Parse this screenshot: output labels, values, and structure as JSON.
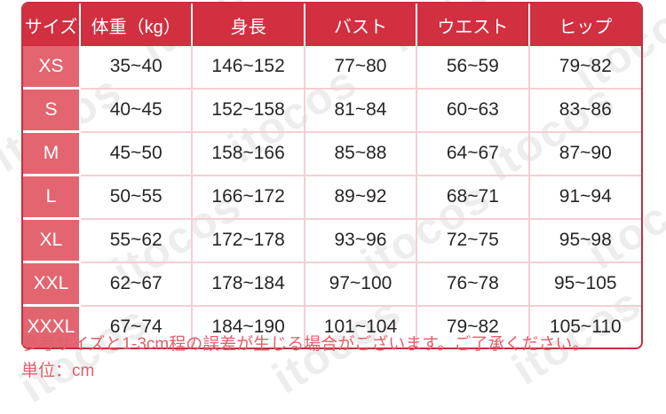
{
  "watermark": {
    "text": "itocos"
  },
  "colors": {
    "header_bg": "#d22f40",
    "size_col_bg": "#e2656f",
    "table_border": "#c43041",
    "cell_divider": "#f6ced2",
    "note_text": "#e05f6c"
  },
  "chart_data": {
    "type": "table",
    "columns": [
      "サイズ",
      "体重（kg）",
      "身長",
      "バスト",
      "ウエスト",
      "ヒップ"
    ],
    "rows": [
      [
        "XS",
        "35~40",
        "146~152",
        "77~80",
        "56~59",
        "79~82"
      ],
      [
        "S",
        "40~45",
        "152~158",
        "81~84",
        "60~63",
        "83~86"
      ],
      [
        "M",
        "45~50",
        "158~166",
        "85~88",
        "64~67",
        "87~90"
      ],
      [
        "L",
        "50~55",
        "166~172",
        "89~92",
        "68~71",
        "91~94"
      ],
      [
        "XL",
        "55~62",
        "172~178",
        "93~96",
        "72~75",
        "95~98"
      ],
      [
        "XXL",
        "62~67",
        "178~184",
        "97~100",
        "76~78",
        "95~105"
      ],
      [
        "XXXL",
        "67~74",
        "184~190",
        "101~104",
        "79~82",
        "105~110"
      ]
    ],
    "unit": "cm"
  },
  "notes": {
    "line1": "参考サイズと1-3cm程の誤差が生じる場合がございます。ご了承ください。",
    "line2": "単位：cm"
  }
}
